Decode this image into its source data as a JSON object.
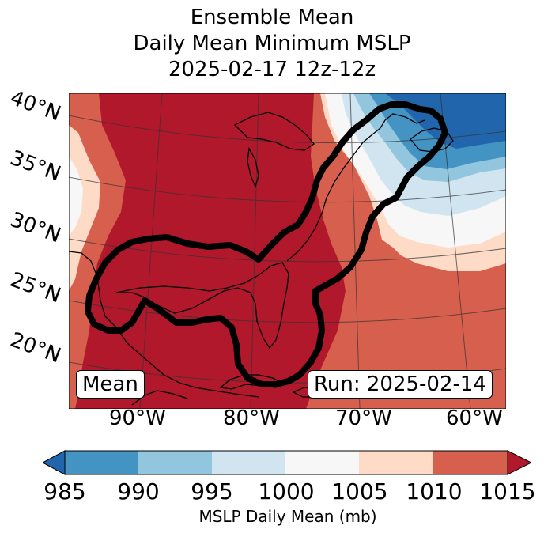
{
  "title": {
    "line1": "Ensemble Mean",
    "line2": "Daily Mean Minimum MSLP",
    "line3": "2025-02-17 12z-12z"
  },
  "map": {
    "lat_labels": [
      "40°N",
      "35°N",
      "30°N",
      "25°N",
      "20°N"
    ],
    "lon_labels": [
      "90°W",
      "80°W",
      "70°W",
      "60°W"
    ],
    "mean_box": "Mean",
    "run_box": "Run: 2025-02-14"
  },
  "colorbar": {
    "ticks": [
      "985",
      "990",
      "995",
      "1000",
      "1005",
      "1010",
      "1015"
    ],
    "label": "MSLP Daily Mean (mb)",
    "colors": {
      "under": "#2166ac",
      "bins": [
        "#4393c3",
        "#92c5de",
        "#d1e5f0",
        "#f7f7f7",
        "#fddbc7",
        "#d6604d"
      ],
      "over": "#b2182b"
    }
  },
  "colors": {
    "c1015": "#b2182b",
    "c1010": "#d6604d",
    "c1005": "#fddbc7",
    "c1000": "#f7f7f7",
    "c995": "#d1e5f0",
    "c990": "#92c5de",
    "c985": "#4393c3",
    "c980": "#2166ac",
    "outline": "#000000"
  }
}
